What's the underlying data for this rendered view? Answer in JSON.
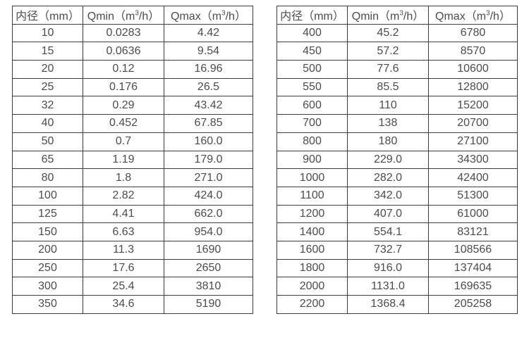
{
  "page": {
    "background": "#ffffff",
    "text_color": "#4c4c4c",
    "border_color": "#3d3d3d"
  },
  "columns": {
    "diameter_label": "内径（mm）",
    "qmin_prefix": "Qmin（m",
    "qmin_sup": "3",
    "qmin_suffix": "/h）",
    "qmax_prefix": "Qmax（m",
    "qmax_sup": "3",
    "qmax_suffix": "/h）"
  },
  "tables": {
    "left": {
      "rows": [
        [
          "10",
          "0.0283",
          "4.42"
        ],
        [
          "15",
          "0.0636",
          "9.54"
        ],
        [
          "20",
          "0.12",
          "16.96"
        ],
        [
          "25",
          "0.176",
          "26.5"
        ],
        [
          "32",
          "0.29",
          "43.42"
        ],
        [
          "40",
          "0.452",
          "67.85"
        ],
        [
          "50",
          "0.7",
          "160.0"
        ],
        [
          "65",
          "1.19",
          "179.0"
        ],
        [
          "80",
          "1.8",
          "271.0"
        ],
        [
          "100",
          "2.82",
          "424.0"
        ],
        [
          "125",
          "4.41",
          "662.0"
        ],
        [
          "150",
          "6.63",
          "954.0"
        ],
        [
          "200",
          "11.3",
          "1690"
        ],
        [
          "250",
          "17.6",
          "2650"
        ],
        [
          "300",
          "25.4",
          "3810"
        ],
        [
          "350",
          "34.6",
          "5190"
        ]
      ]
    },
    "right": {
      "rows": [
        [
          "400",
          "45.2",
          "6780"
        ],
        [
          "450",
          "57.2",
          "8570"
        ],
        [
          "500",
          "77.6",
          "10600"
        ],
        [
          "550",
          "85.5",
          "12800"
        ],
        [
          "600",
          "110",
          "15200"
        ],
        [
          "700",
          "138",
          "20700"
        ],
        [
          "800",
          "180",
          "27100"
        ],
        [
          "900",
          "229.0",
          "34300"
        ],
        [
          "1000",
          "282.0",
          "42400"
        ],
        [
          "1100",
          "342.0",
          "51300"
        ],
        [
          "1200",
          "407.0",
          "61000"
        ],
        [
          "1400",
          "554.1",
          "83121"
        ],
        [
          "1600",
          "732.7",
          "108566"
        ],
        [
          "1800",
          "916.0",
          "137404"
        ],
        [
          "2000",
          "1131.0",
          "169635"
        ],
        [
          "2200",
          "1368.4",
          "205258"
        ]
      ]
    }
  }
}
